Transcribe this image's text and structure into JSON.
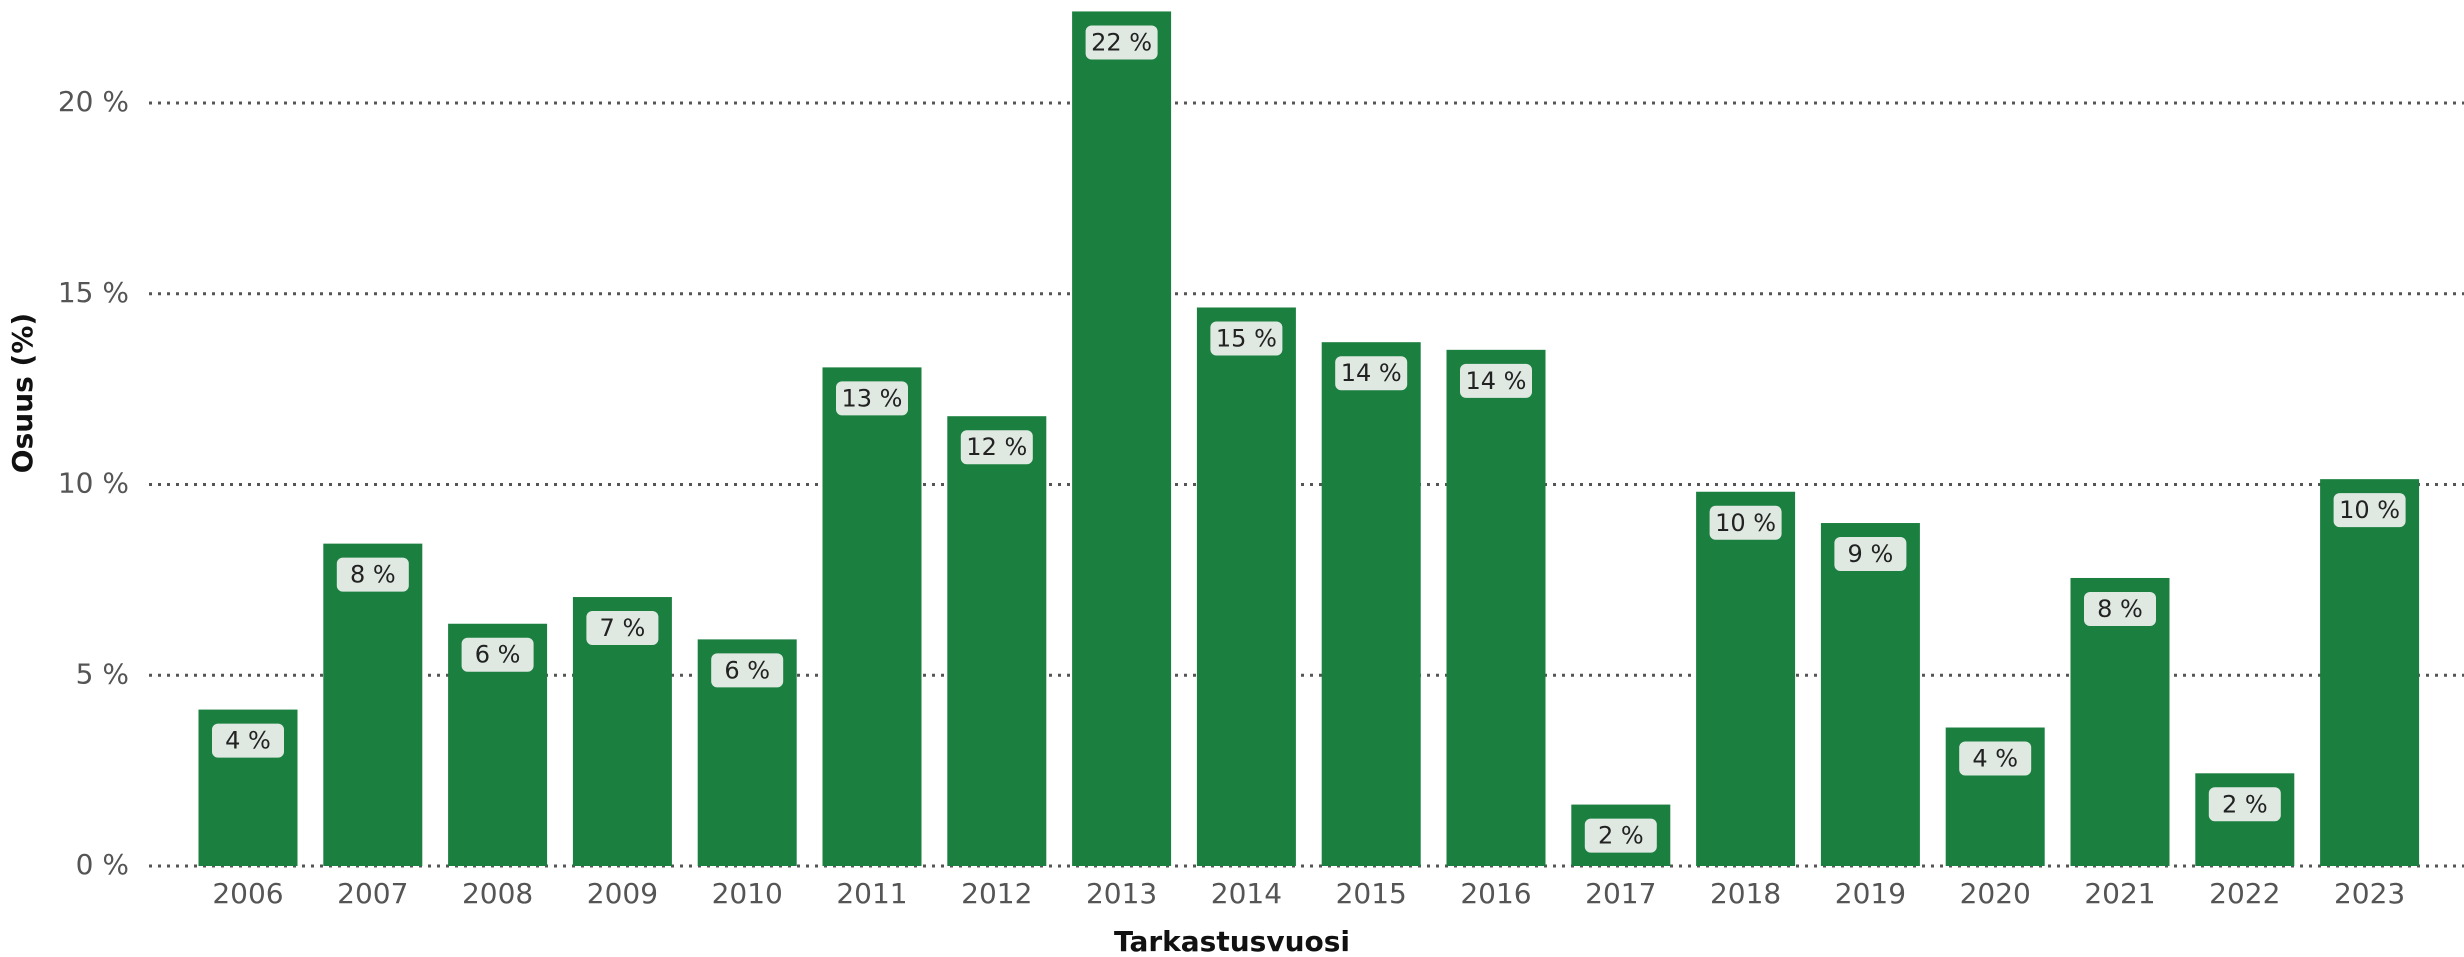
{
  "chart_data": {
    "type": "bar",
    "xlabel": "Tarkastusvuosi",
    "ylabel": "Osuus (%)",
    "categories": [
      "2006",
      "2007",
      "2008",
      "2009",
      "2010",
      "2011",
      "2012",
      "2013",
      "2014",
      "2015",
      "2016",
      "2017",
      "2018",
      "2019",
      "2020",
      "2021",
      "2022",
      "2023"
    ],
    "values": [
      4.1,
      8.45,
      6.35,
      7.05,
      5.94,
      13.07,
      11.79,
      22.4,
      14.64,
      13.73,
      13.53,
      1.61,
      9.81,
      8.99,
      3.63,
      7.55,
      2.43,
      10.14
    ],
    "value_labels": [
      "4 %",
      "8 %",
      "6 %",
      "7 %",
      "6 %",
      "13 %",
      "12 %",
      "22 %",
      "15 %",
      "14 %",
      "14 %",
      "2 %",
      "10 %",
      "9 %",
      "4 %",
      "8 %",
      "2 %",
      "10 %"
    ],
    "color": "#1a7f3f",
    "ylim": [
      0,
      22.7
    ],
    "yticks": [
      {
        "value": 0,
        "label": "0 %"
      },
      {
        "value": 5,
        "label": "5 %"
      },
      {
        "value": 10,
        "label": "10 %"
      },
      {
        "value": 15,
        "label": "15 %"
      },
      {
        "value": 20,
        "label": "20 %"
      }
    ],
    "grid": true
  }
}
